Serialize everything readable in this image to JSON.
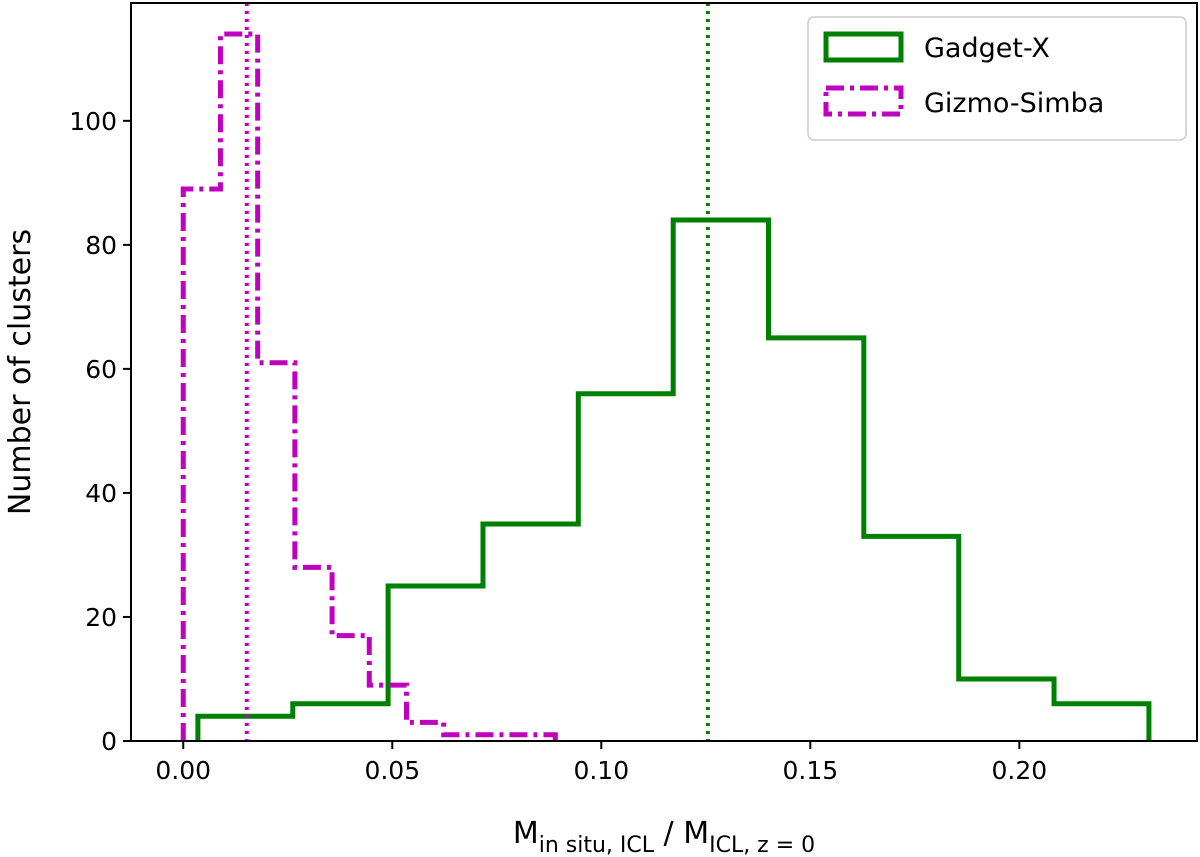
{
  "chart_data": {
    "type": "histogram",
    "xlabel": {
      "base1": "M",
      "sub1": "in situ, ICL",
      "separator": " / ",
      "base2": "M",
      "sub2": "ICL, z = 0"
    },
    "ylabel": "Number of clusters",
    "xlim": [
      -0.0125,
      0.2425
    ],
    "ylim": [
      0,
      119
    ],
    "xticks": [
      0.0,
      0.05,
      0.1,
      0.15,
      0.2
    ],
    "xtick_labels": [
      "0.00",
      "0.05",
      "0.10",
      "0.15",
      "0.20"
    ],
    "yticks": [
      0,
      20,
      40,
      60,
      80,
      100
    ],
    "ytick_labels": [
      "0",
      "20",
      "40",
      "60",
      "80",
      "100"
    ],
    "legend_position": "top-right",
    "series": [
      {
        "name": "Gadget-X",
        "color": "#008000",
        "linestyle": "solid",
        "bin_edges": [
          0.0035,
          0.0262,
          0.049,
          0.0717,
          0.0945,
          0.1172,
          0.14,
          0.1628,
          0.1855,
          0.2083,
          0.231
        ],
        "counts": [
          4,
          6,
          25,
          35,
          56,
          84,
          65,
          33,
          10,
          6
        ],
        "median": 0.1255
      },
      {
        "name": "Gizmo-Simba",
        "color": "#bf00bf",
        "linestyle": "dashdot",
        "bin_edges": [
          0.0,
          0.0089,
          0.0178,
          0.0267,
          0.0356,
          0.0445,
          0.0534,
          0.0623,
          0.0712,
          0.0801,
          0.089
        ],
        "counts": [
          89,
          114,
          61,
          28,
          17,
          9,
          3,
          1,
          1,
          1
        ],
        "median": 0.0152
      }
    ]
  }
}
